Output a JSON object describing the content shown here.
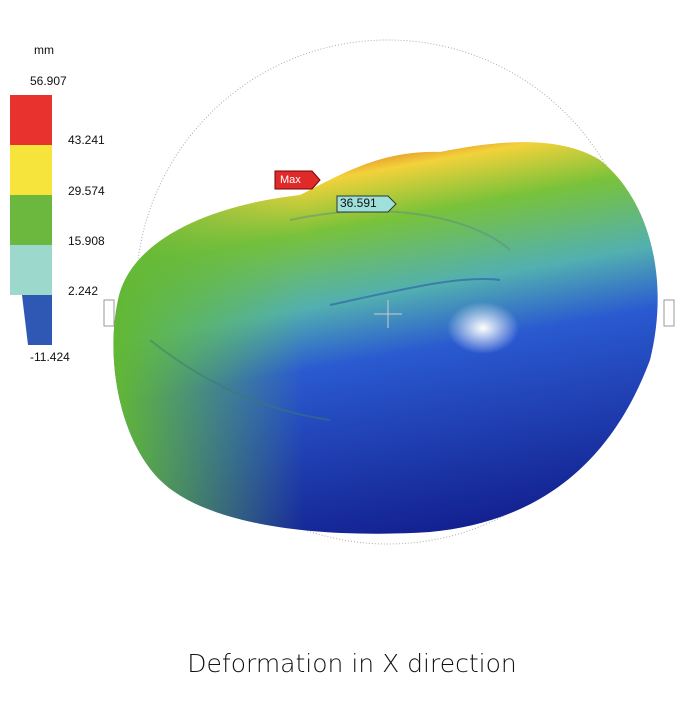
{
  "legend": {
    "unit": "mm",
    "levels": [
      "56.907",
      "43.241",
      "29.574",
      "15.908",
      "2.242",
      "-11.424"
    ]
  },
  "markers": {
    "max": "Max",
    "probe": "36.591"
  },
  "caption": "Deformation in X direction"
}
